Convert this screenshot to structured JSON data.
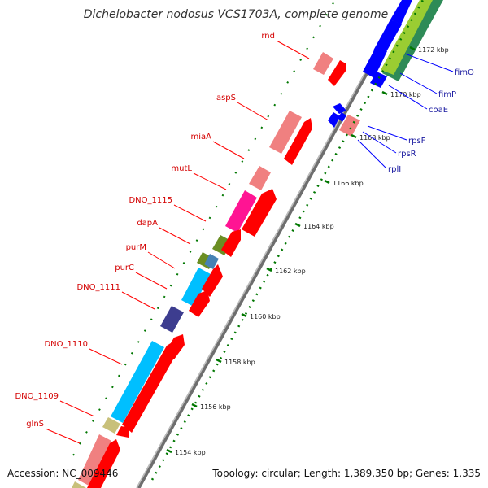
{
  "title": "Dichelobacter nodosus VCS1703A, complete genome",
  "footer": {
    "accession": "Accession: NC_009446",
    "summary": "Topology: circular; Length: 1,389,350 bp; Genes: 1,335"
  },
  "scale_labels": [
    "1154 kbp",
    "1156 kbp",
    "1158 kbp",
    "1160 kbp",
    "1162 kbp",
    "1164 kbp",
    "1166 kbp",
    "1168 kbp",
    "1170 kbp",
    "1172 kbp"
  ],
  "left_genes": [
    "rnd",
    "aspS",
    "miaA",
    "mutL",
    "DNO_1115",
    "dapA",
    "purM",
    "purC",
    "DNO_1111",
    "DNO_1110",
    "DNO_1109",
    "glnS"
  ],
  "right_genes": [
    "fimO",
    "fimP",
    "coaE",
    "rpsF",
    "rpsR",
    "rplI"
  ],
  "colors": {
    "cds": "#ff0000",
    "gene": "#f08080",
    "cyan": "#00bfff",
    "olive": "#6b8e23",
    "magenta": "#ff1493",
    "navy": "#3d3d8f",
    "steel": "#4682b4",
    "khaki": "#c8c07a",
    "blue": "#0000ff",
    "lime": "#9acd32",
    "green": "#2e8b57",
    "scale_tick": "#007700"
  }
}
